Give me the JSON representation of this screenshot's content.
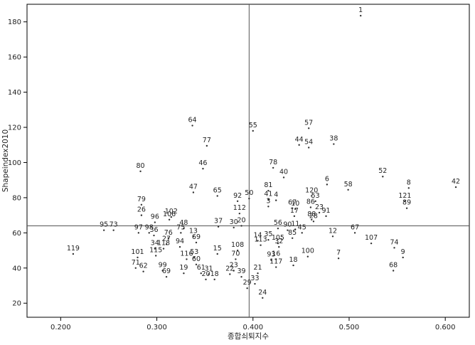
{
  "chart_data": {
    "type": "scatter",
    "xlabel": "종합쇠퇴지수",
    "ylabel": "Shapeindex2010",
    "xlim": [
      0.165,
      0.625
    ],
    "ylim": [
      12,
      190
    ],
    "x_ticks": [
      "0.200",
      "0.300",
      "0.400",
      "0.500",
      "0.600"
    ],
    "x_tick_values": [
      0.2,
      0.3,
      0.4,
      0.5,
      0.6
    ],
    "y_ticks": [
      "20",
      "40",
      "60",
      "80",
      "100",
      "120",
      "140",
      "160",
      "180"
    ],
    "y_tick_values": [
      20,
      40,
      60,
      80,
      100,
      120,
      140,
      160,
      180
    ],
    "grid": false,
    "reference_lines": {
      "x": 0.396,
      "y": 64
    },
    "colors": {
      "marker": "#333333",
      "axis": "#000000",
      "reference": "#555555"
    },
    "points": [
      {
        "label": "1",
        "x": 0.512,
        "y": 183.5
      },
      {
        "label": "64",
        "x": 0.337,
        "y": 121
      },
      {
        "label": "57",
        "x": 0.458,
        "y": 119.5
      },
      {
        "label": "55",
        "x": 0.4,
        "y": 118
      },
      {
        "label": "44",
        "x": 0.448,
        "y": 110
      },
      {
        "label": "38",
        "x": 0.484,
        "y": 110.5
      },
      {
        "label": "54",
        "x": 0.458,
        "y": 108.5
      },
      {
        "label": "77",
        "x": 0.352,
        "y": 109.5
      },
      {
        "label": "46",
        "x": 0.348,
        "y": 96.5
      },
      {
        "label": "78",
        "x": 0.421,
        "y": 97
      },
      {
        "label": "40",
        "x": 0.432,
        "y": 91.5
      },
      {
        "label": "80",
        "x": 0.283,
        "y": 95
      },
      {
        "label": "52",
        "x": 0.535,
        "y": 92
      },
      {
        "label": "6",
        "x": 0.477,
        "y": 87.5
      },
      {
        "label": "58",
        "x": 0.499,
        "y": 84.5
      },
      {
        "label": "8",
        "x": 0.562,
        "y": 85.5
      },
      {
        "label": "42",
        "x": 0.611,
        "y": 86
      },
      {
        "label": "47",
        "x": 0.338,
        "y": 83
      },
      {
        "label": "65",
        "x": 0.363,
        "y": 81
      },
      {
        "label": "81",
        "x": 0.416,
        "y": 84
      },
      {
        "label": "120",
        "x": 0.461,
        "y": 81
      },
      {
        "label": "41",
        "x": 0.416,
        "y": 79
      },
      {
        "label": "4",
        "x": 0.424,
        "y": 78.5
      },
      {
        "label": "53",
        "x": 0.465,
        "y": 78
      },
      {
        "label": "92",
        "x": 0.384,
        "y": 78
      },
      {
        "label": "50",
        "x": 0.396,
        "y": 79.5
      },
      {
        "label": "121",
        "x": 0.558,
        "y": 78
      },
      {
        "label": "79",
        "x": 0.284,
        "y": 76
      },
      {
        "label": "3",
        "x": 0.416,
        "y": 75
      },
      {
        "label": "67",
        "x": 0.441,
        "y": 74
      },
      {
        "label": "10",
        "x": 0.444,
        "y": 73.5
      },
      {
        "label": "86",
        "x": 0.46,
        "y": 74.5
      },
      {
        "label": "89",
        "x": 0.56,
        "y": 74
      },
      {
        "label": "112",
        "x": 0.386,
        "y": 71
      },
      {
        "label": "23",
        "x": 0.469,
        "y": 71.5
      },
      {
        "label": "26",
        "x": 0.284,
        "y": 70
      },
      {
        "label": "102",
        "x": 0.315,
        "y": 69
      },
      {
        "label": "17",
        "x": 0.443,
        "y": 69.5
      },
      {
        "label": "91",
        "x": 0.476,
        "y": 69.5
      },
      {
        "label": "106",
        "x": 0.313,
        "y": 67.5
      },
      {
        "label": "96",
        "x": 0.298,
        "y": 66
      },
      {
        "label": "88",
        "x": 0.461,
        "y": 67.5
      },
      {
        "label": "28",
        "x": 0.463,
        "y": 66.5
      },
      {
        "label": "37",
        "x": 0.364,
        "y": 63.5
      },
      {
        "label": "20",
        "x": 0.388,
        "y": 64
      },
      {
        "label": "30",
        "x": 0.38,
        "y": 63
      },
      {
        "label": "48",
        "x": 0.328,
        "y": 62.5
      },
      {
        "label": "56",
        "x": 0.426,
        "y": 62.5
      },
      {
        "label": "90",
        "x": 0.436,
        "y": 61.5
      },
      {
        "label": "11",
        "x": 0.444,
        "y": 62
      },
      {
        "label": "95",
        "x": 0.245,
        "y": 61.5
      },
      {
        "label": "73",
        "x": 0.255,
        "y": 61.5
      },
      {
        "label": "97",
        "x": 0.281,
        "y": 60
      },
      {
        "label": "98",
        "x": 0.292,
        "y": 60
      },
      {
        "label": "36",
        "x": 0.297,
        "y": 58.5
      },
      {
        "label": "75",
        "x": 0.325,
        "y": 60
      },
      {
        "label": "45",
        "x": 0.451,
        "y": 60
      },
      {
        "label": "12",
        "x": 0.483,
        "y": 58
      },
      {
        "label": "67",
        "x": 0.506,
        "y": 60
      },
      {
        "label": "76",
        "x": 0.312,
        "y": 57
      },
      {
        "label": "13",
        "x": 0.338,
        "y": 58
      },
      {
        "label": "85",
        "x": 0.441,
        "y": 57
      },
      {
        "label": "14",
        "x": 0.405,
        "y": 55.5
      },
      {
        "label": "35",
        "x": 0.416,
        "y": 56
      },
      {
        "label": "69",
        "x": 0.341,
        "y": 54.5
      },
      {
        "label": "27",
        "x": 0.31,
        "y": 53.5
      },
      {
        "label": "105",
        "x": 0.426,
        "y": 54
      },
      {
        "label": "107",
        "x": 0.523,
        "y": 54
      },
      {
        "label": "94",
        "x": 0.324,
        "y": 52
      },
      {
        "label": "113",
        "x": 0.408,
        "y": 53
      },
      {
        "label": "32",
        "x": 0.427,
        "y": 52
      },
      {
        "label": "34",
        "x": 0.298,
        "y": 51
      },
      {
        "label": "118",
        "x": 0.307,
        "y": 51
      },
      {
        "label": "74",
        "x": 0.547,
        "y": 51.5
      },
      {
        "label": "108",
        "x": 0.384,
        "y": 50
      },
      {
        "label": "15",
        "x": 0.363,
        "y": 48
      },
      {
        "label": "119",
        "x": 0.213,
        "y": 48
      },
      {
        "label": "101",
        "x": 0.28,
        "y": 46
      },
      {
        "label": "115",
        "x": 0.299,
        "y": 47
      },
      {
        "label": "53",
        "x": 0.339,
        "y": 46
      },
      {
        "label": "100",
        "x": 0.457,
        "y": 46.5
      },
      {
        "label": "7",
        "x": 0.489,
        "y": 45.5
      },
      {
        "label": "9",
        "x": 0.556,
        "y": 46
      },
      {
        "label": "70",
        "x": 0.382,
        "y": 45
      },
      {
        "label": "116",
        "x": 0.331,
        "y": 45
      },
      {
        "label": "16",
        "x": 0.424,
        "y": 45
      },
      {
        "label": "93",
        "x": 0.419,
        "y": 44.5
      },
      {
        "label": "60",
        "x": 0.341,
        "y": 42
      },
      {
        "label": "18",
        "x": 0.442,
        "y": 41.5
      },
      {
        "label": "117",
        "x": 0.424,
        "y": 40.5
      },
      {
        "label": "71",
        "x": 0.278,
        "y": 40
      },
      {
        "label": "99",
        "x": 0.306,
        "y": 38.5
      },
      {
        "label": "62",
        "x": 0.286,
        "y": 38
      },
      {
        "label": "68",
        "x": 0.546,
        "y": 38.5
      },
      {
        "label": "23",
        "x": 0.38,
        "y": 38.5
      },
      {
        "label": "19",
        "x": 0.328,
        "y": 37
      },
      {
        "label": "61",
        "x": 0.346,
        "y": 37
      },
      {
        "label": "31",
        "x": 0.354,
        "y": 36.5
      },
      {
        "label": "22",
        "x": 0.376,
        "y": 36.5
      },
      {
        "label": "21",
        "x": 0.405,
        "y": 37
      },
      {
        "label": "69",
        "x": 0.31,
        "y": 35
      },
      {
        "label": "39",
        "x": 0.388,
        "y": 35
      },
      {
        "label": "20",
        "x": 0.351,
        "y": 33.5
      },
      {
        "label": "18",
        "x": 0.36,
        "y": 33.5
      },
      {
        "label": "33",
        "x": 0.402,
        "y": 31
      },
      {
        "label": "29",
        "x": 0.394,
        "y": 28.5
      },
      {
        "label": "24",
        "x": 0.41,
        "y": 23
      }
    ]
  }
}
